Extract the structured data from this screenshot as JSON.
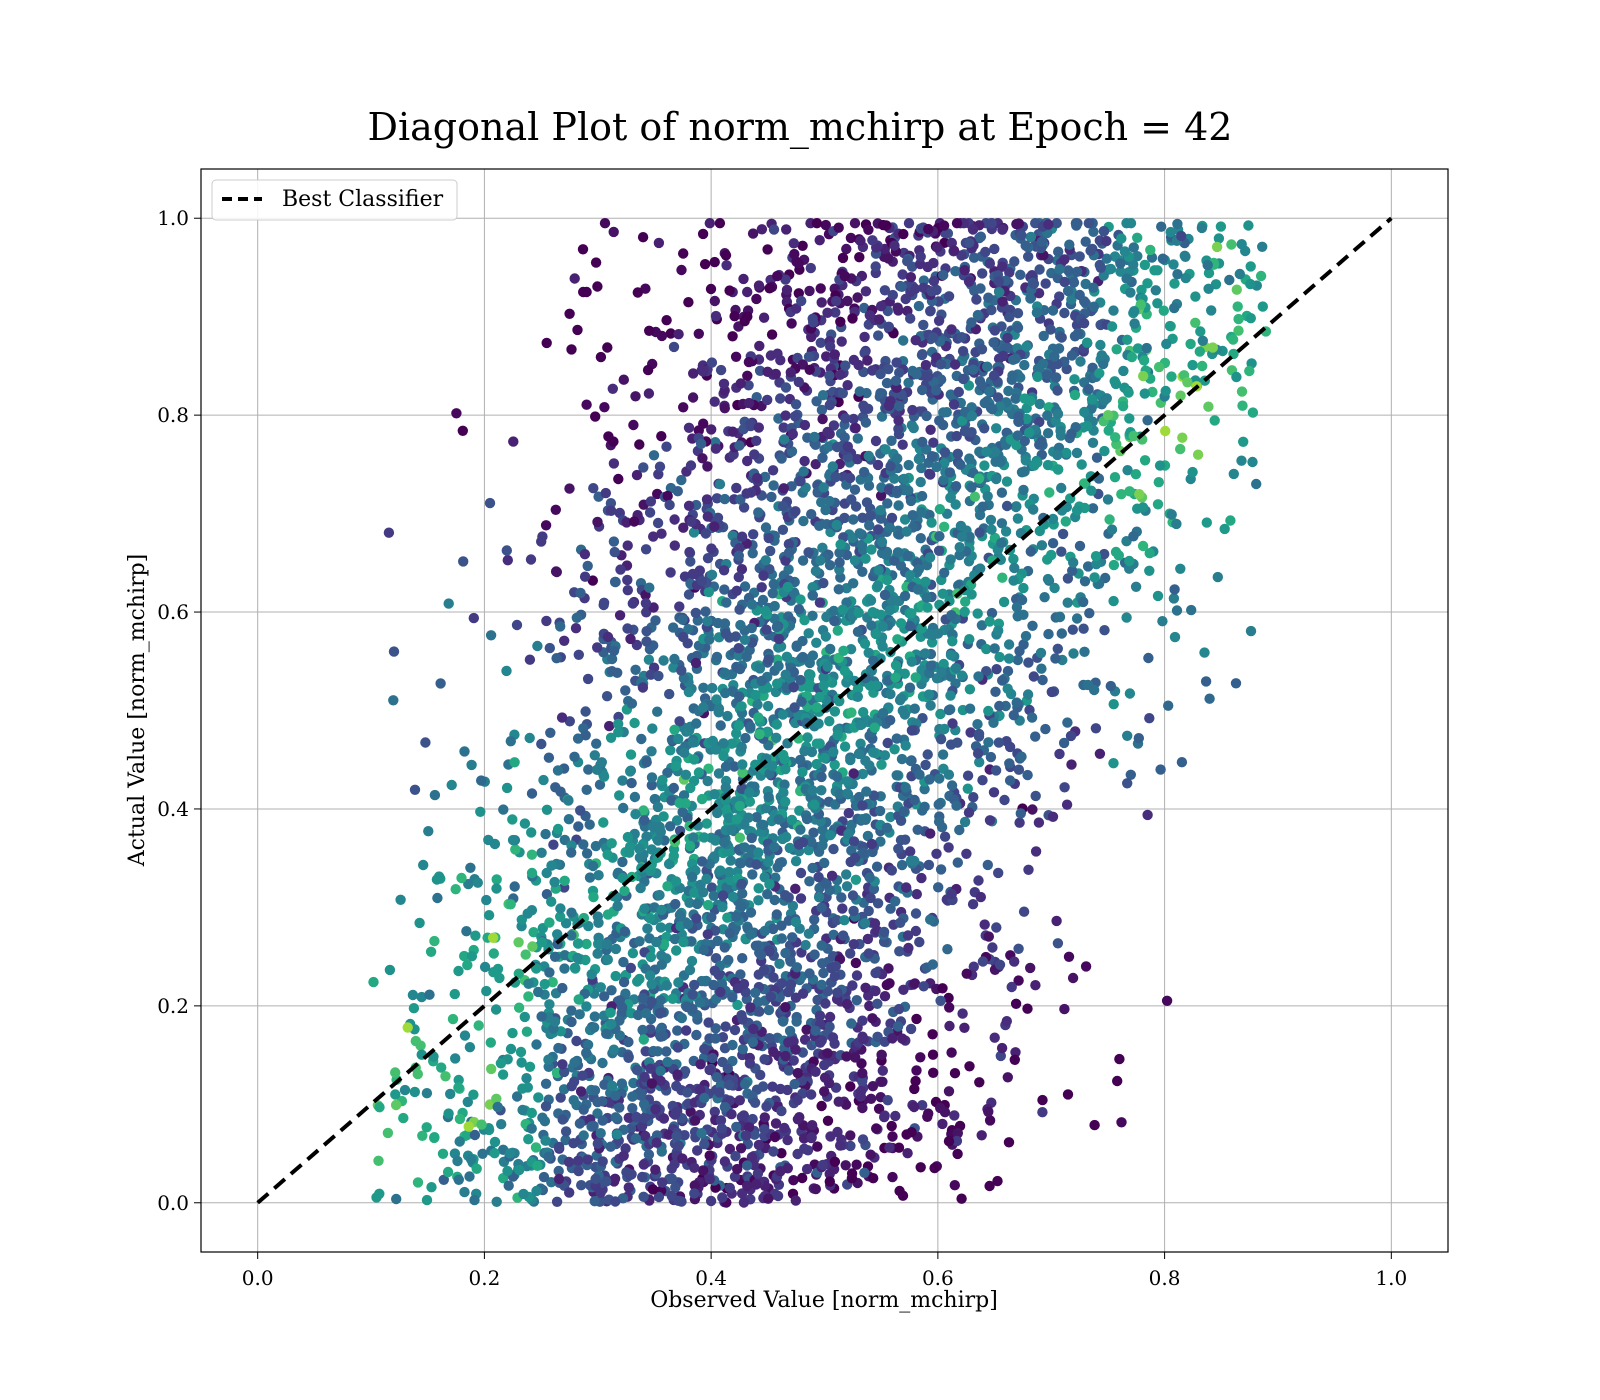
{
  "chart_data": {
    "type": "scatter",
    "title": "Diagonal Plot of norm_mchirp at Epoch = 42",
    "xlabel": "Observed Value [norm_mchirp]",
    "ylabel": "Actual Value [norm_mchirp]",
    "xlim": [
      -0.05,
      1.05
    ],
    "ylim": [
      -0.05,
      1.05
    ],
    "xticks": [
      "0.0",
      "0.2",
      "0.4",
      "0.6",
      "0.8",
      "1.0"
    ],
    "yticks": [
      "0.0",
      "0.2",
      "0.4",
      "0.6",
      "0.8",
      "1.0"
    ],
    "grid": true,
    "legend_position": "top-left",
    "colormap": "viridis",
    "series": [
      {
        "name": "Best Classifier",
        "type": "line",
        "style": "dashed",
        "color": "#000000",
        "x": [
          0.0,
          1.0
        ],
        "y": [
          0.0,
          1.0
        ]
      }
    ],
    "scatter_summary": {
      "description_points": [
        {
          "x": 0.11,
          "y": 0.07
        },
        {
          "x": 0.13,
          "y": 0.21
        },
        {
          "x": 0.19,
          "y": 0.5
        },
        {
          "x": 0.2,
          "y": 0.54
        },
        {
          "x": 0.23,
          "y": 0.84
        },
        {
          "x": 0.24,
          "y": 0.85
        },
        {
          "x": 0.36,
          "y": 0.99
        },
        {
          "x": 0.45,
          "y": 1.0
        },
        {
          "x": 0.54,
          "y": 1.0
        },
        {
          "x": 0.7,
          "y": 0.99
        },
        {
          "x": 0.8,
          "y": 1.0
        },
        {
          "x": 0.86,
          "y": 0.99
        },
        {
          "x": 0.89,
          "y": 0.94
        },
        {
          "x": 0.87,
          "y": 0.81
        },
        {
          "x": 0.85,
          "y": 0.67
        },
        {
          "x": 0.8,
          "y": 0.47
        },
        {
          "x": 0.74,
          "y": 0.2
        },
        {
          "x": 0.7,
          "y": 0.12
        },
        {
          "x": 0.57,
          "y": 0.01
        },
        {
          "x": 0.36,
          "y": 0.0
        },
        {
          "x": 0.21,
          "y": 0.0
        },
        {
          "x": 0.15,
          "y": 0.03
        }
      ]
    }
  }
}
